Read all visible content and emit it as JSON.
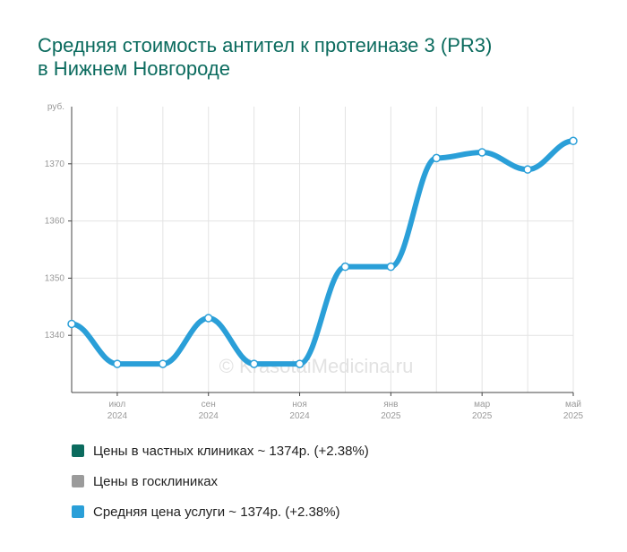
{
  "title": {
    "line1": "Средняя стоимость антител к протеиназе 3 (PR3)",
    "line2": "в Нижнем Новгороде"
  },
  "watermark": "© KrasotaiMedicina.ru",
  "colors": {
    "title": "#0b6b5e",
    "private": "#0b6b5e",
    "public": "#9b9b9b",
    "average": "#2a9fd8",
    "grid": "#e3e3e3",
    "axis": "#444444",
    "marker_fill": "#ffffff",
    "marker_stroke": "#2a9fd8"
  },
  "legend": [
    {
      "label": "Цены в частных клиниках ~ 1374р. (+2.38%)",
      "color": "#0b6b5e"
    },
    {
      "label": "Цены в госклиниках",
      "color": "#9b9b9b"
    },
    {
      "label": "Средняя цена услуги ~ 1374р. (+2.38%)",
      "color": "#2a9fd8"
    }
  ],
  "chart_data": {
    "type": "line",
    "title": "Средняя стоимость антител к протеиназе 3 (PR3) в Нижнем Новгороде",
    "ylabel": "руб.",
    "xlabel": "",
    "ylim": [
      1330,
      1380
    ],
    "yticks": [
      1340,
      1350,
      1360,
      1370
    ],
    "grid": true,
    "legend_position": "bottom",
    "x": [
      "2024-06",
      "2024-07",
      "2024-08",
      "2024-09",
      "2024-10",
      "2024-11",
      "2024-12",
      "2025-01",
      "2025-02",
      "2025-03",
      "2025-04",
      "2025-05"
    ],
    "x_tick_labels": [
      {
        "index": 1,
        "month": "июл",
        "year": "2024"
      },
      {
        "index": 3,
        "month": "сен",
        "year": "2024"
      },
      {
        "index": 5,
        "month": "ноя",
        "year": "2024"
      },
      {
        "index": 7,
        "month": "янв",
        "year": "2025"
      },
      {
        "index": 9,
        "month": "мар",
        "year": "2025"
      },
      {
        "index": 11,
        "month": "май",
        "year": "2025"
      }
    ],
    "series": [
      {
        "name": "Средняя цена услуги ~ 1374р. (+2.38%)",
        "values": [
          1342,
          1335,
          1335,
          1343,
          1335,
          1335,
          1352,
          1352,
          1371,
          1372,
          1369,
          1374
        ]
      }
    ]
  }
}
